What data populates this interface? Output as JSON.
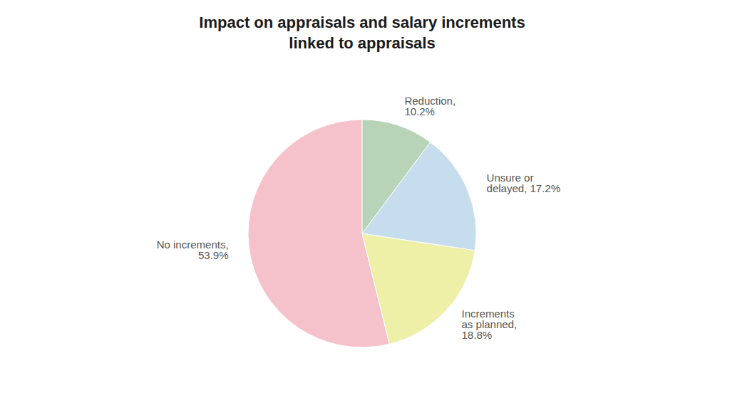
{
  "chart_data": {
    "type": "pie",
    "title": "Impact on appraisals and salary increments\nlinked to appraisals",
    "categories": [
      "No increments,\n53.9%",
      "Increments\nas planned,\n18.8%",
      "Unsure or\ndelayed, 17.2%",
      "Reduction,\n10.2%"
    ],
    "values": [
      53.9,
      18.8,
      17.2,
      10.2
    ],
    "colors": [
      "#f5c2cb",
      "#eef0a8",
      "#c5dded",
      "#b8d4b8"
    ]
  }
}
